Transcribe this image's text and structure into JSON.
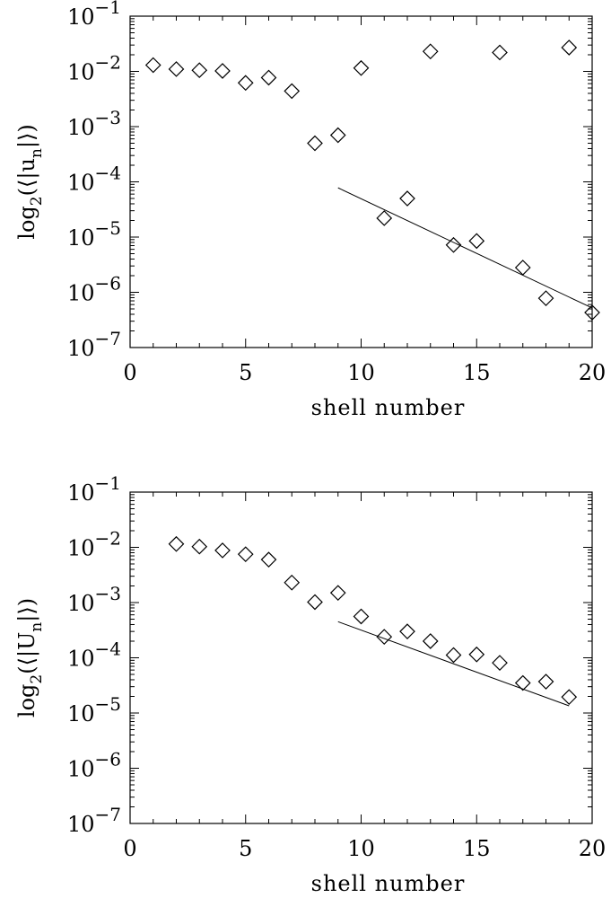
{
  "chart_data": [
    {
      "type": "scatter",
      "xlabel": "shell number",
      "ylabel_main": "log",
      "ylabel_sub": "2",
      "ylabel_rest": "(⟨|u",
      "ylabel_sub2": "n",
      "ylabel_end": "|⟩)",
      "xlim": [
        0,
        20
      ],
      "ylim_exp": [
        -7,
        -1
      ],
      "y_scale": "log",
      "x_ticks": [
        "0",
        "5",
        "10",
        "15",
        "20"
      ],
      "y_ticks": [
        {
          "base": "10",
          "exp": "−1",
          "e": -1
        },
        {
          "base": "10",
          "exp": "−2",
          "e": -2
        },
        {
          "base": "10",
          "exp": "−3",
          "e": -3
        },
        {
          "base": "10",
          "exp": "−4",
          "e": -4
        },
        {
          "base": "10",
          "exp": "−5",
          "e": -5
        },
        {
          "base": "10",
          "exp": "−6",
          "e": -6
        },
        {
          "base": "10",
          "exp": "−7",
          "e": -7
        }
      ],
      "points": [
        [
          1,
          0.013
        ],
        [
          2,
          0.011
        ],
        [
          3,
          0.0105
        ],
        [
          4,
          0.0102
        ],
        [
          5,
          0.0062
        ],
        [
          6,
          0.0077
        ],
        [
          7,
          0.0044
        ],
        [
          8,
          0.0005
        ],
        [
          9,
          0.0007
        ],
        [
          10,
          0.0115
        ],
        [
          11,
          2.2e-05
        ],
        [
          12,
          5e-05
        ],
        [
          13,
          0.023
        ],
        [
          14,
          7.2e-06
        ],
        [
          15,
          8.5e-06
        ],
        [
          16,
          0.022
        ],
        [
          17,
          2.8e-06
        ],
        [
          18,
          7.8e-07
        ],
        [
          19,
          0.027
        ],
        [
          20,
          4.3e-07
        ]
      ],
      "fit_line": [
        [
          9,
          7.8e-05
        ],
        [
          20,
          5.2e-07
        ]
      ]
    },
    {
      "type": "scatter",
      "xlabel": "shell number",
      "ylabel_main": "log",
      "ylabel_sub": "2",
      "ylabel_rest": "(⟨|U",
      "ylabel_sub2": "n",
      "ylabel_end": "|⟩)",
      "xlim": [
        0,
        20
      ],
      "ylim_exp": [
        -7,
        -1
      ],
      "y_scale": "log",
      "x_ticks": [
        "0",
        "5",
        "10",
        "15",
        "20"
      ],
      "y_ticks": [
        {
          "base": "10",
          "exp": "−1",
          "e": -1
        },
        {
          "base": "10",
          "exp": "−2",
          "e": -2
        },
        {
          "base": "10",
          "exp": "−3",
          "e": -3
        },
        {
          "base": "10",
          "exp": "−4",
          "e": -4
        },
        {
          "base": "10",
          "exp": "−5",
          "e": -5
        },
        {
          "base": "10",
          "exp": "−6",
          "e": -6
        },
        {
          "base": "10",
          "exp": "−7",
          "e": -7
        }
      ],
      "points": [
        [
          2,
          0.0115
        ],
        [
          3,
          0.0103
        ],
        [
          4,
          0.0088
        ],
        [
          5,
          0.0075
        ],
        [
          6,
          0.006
        ],
        [
          7,
          0.0023
        ],
        [
          8,
          0.00102
        ],
        [
          9,
          0.0015
        ],
        [
          10,
          0.00056
        ],
        [
          11,
          0.00024
        ],
        [
          12,
          0.0003
        ],
        [
          13,
          0.0002
        ],
        [
          14,
          0.000112
        ],
        [
          15,
          0.000115
        ],
        [
          16,
          8.1e-05
        ],
        [
          17,
          3.5e-05
        ],
        [
          18,
          3.7e-05
        ],
        [
          19,
          1.95e-05
        ]
      ],
      "fit_line": [
        [
          9,
          0.00045
        ],
        [
          19,
          1.35e-05
        ]
      ]
    }
  ]
}
